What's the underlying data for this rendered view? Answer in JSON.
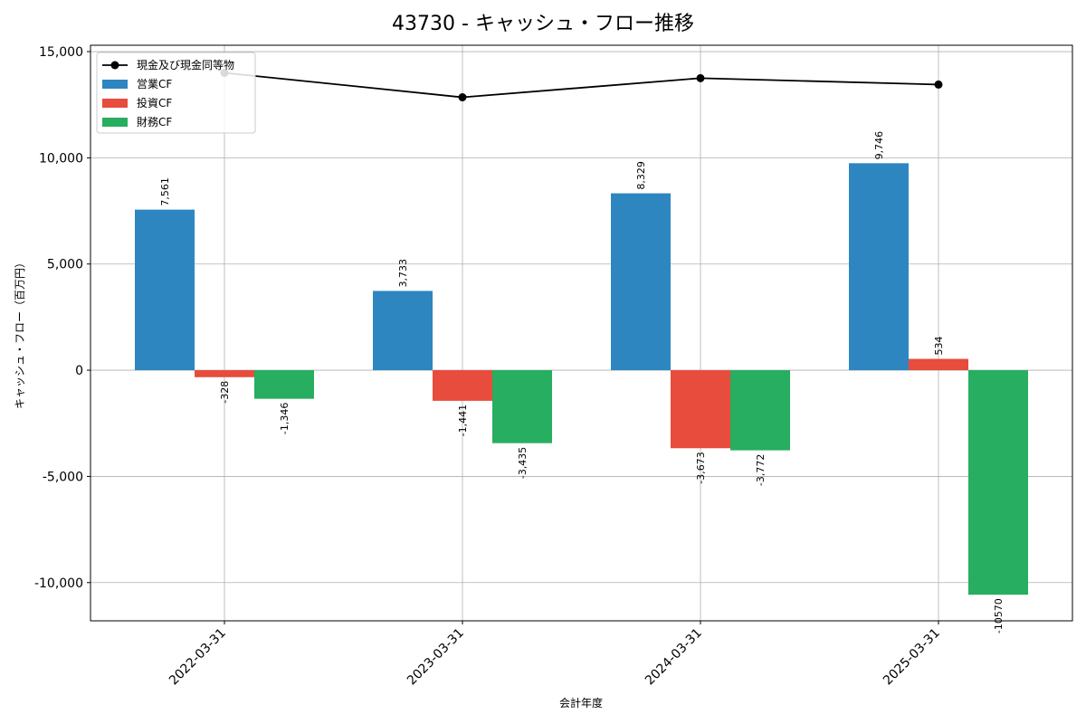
{
  "chart_data": {
    "type": "bar",
    "title": "43730 - キャッシュ・フロー推移",
    "xlabel": "会計年度",
    "ylabel": "キャッシュ・フロー（百万円）",
    "categories": [
      "2022-03-31",
      "2023-03-31",
      "2024-03-31",
      "2025-03-31"
    ],
    "ylim": [
      -11800,
      15300
    ],
    "yticks": [
      -10000,
      -5000,
      0,
      5000,
      10000,
      15000
    ],
    "ytick_labels": [
      "-10,000",
      "-5,000",
      "0",
      "5,000",
      "10,000",
      "15,000"
    ],
    "grid": true,
    "legend_position": "top-left",
    "series": [
      {
        "name": "営業CF",
        "kind": "bar",
        "color": "#2e86c1",
        "values": [
          7561,
          3733,
          8329,
          9746
        ],
        "labels": [
          "7,561",
          "3,733",
          "8,329",
          "9,746"
        ]
      },
      {
        "name": "投資CF",
        "kind": "bar",
        "color": "#e74c3c",
        "values": [
          -328,
          -1441,
          -3673,
          534
        ],
        "labels": [
          "-328",
          "-1,441",
          "-3,673",
          "534"
        ]
      },
      {
        "name": "財務CF",
        "kind": "bar",
        "color": "#27ae60",
        "values": [
          -1346,
          -3435,
          -3772,
          -10570
        ],
        "labels": [
          "-1,346",
          "-3,435",
          "-3,772",
          "-10570"
        ]
      },
      {
        "name": "現金及び現金同等物",
        "kind": "line",
        "color": "#000000",
        "values": [
          14000,
          12850,
          13750,
          13450
        ]
      }
    ]
  }
}
